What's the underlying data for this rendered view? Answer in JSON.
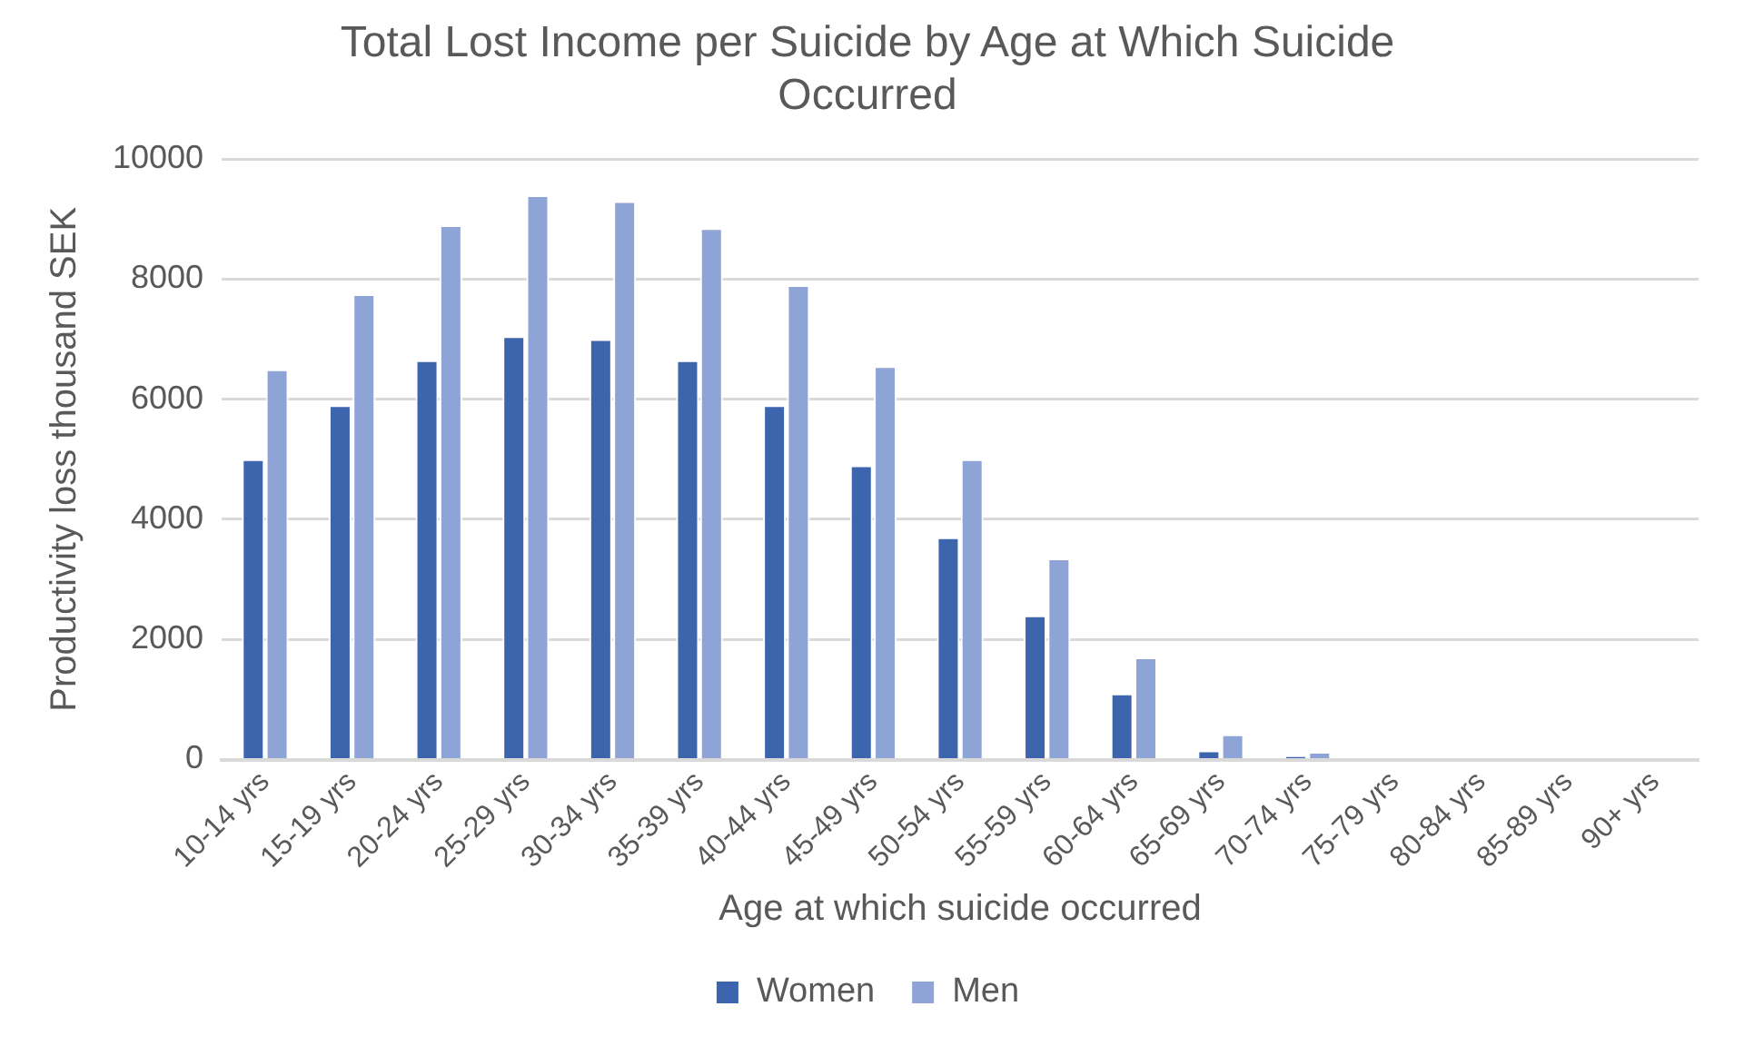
{
  "chart_data": {
    "type": "bar",
    "title": "Total Lost Income per Suicide by Age at Which Suicide Occurred",
    "xlabel": "Age at which suicide occurred",
    "ylabel": "Productivity loss thousand SEK",
    "categories": [
      "10-14 yrs",
      "15-19 yrs",
      "20-24 yrs",
      "25-29 yrs",
      "30-34 yrs",
      "35-39 yrs",
      "40-44 yrs",
      "45-49 yrs",
      "50-54 yrs",
      "55-59 yrs",
      "60-64 yrs",
      "65-69 yrs",
      "70-74 yrs",
      "75-79 yrs",
      "80-84 yrs",
      "85-89 yrs",
      "90+ yrs"
    ],
    "series": [
      {
        "name": "Women",
        "color": "#3c65ad",
        "values": [
          5000,
          5900,
          6650,
          7050,
          7000,
          6650,
          5900,
          4900,
          3700,
          2400,
          1100,
          150,
          60,
          0,
          0,
          0,
          0
        ]
      },
      {
        "name": "Men",
        "color": "#8fa4d6",
        "values": [
          6500,
          7750,
          8900,
          9400,
          9300,
          8850,
          7900,
          6550,
          5000,
          3350,
          1700,
          420,
          130,
          0,
          0,
          0,
          0
        ]
      }
    ],
    "ylim": [
      0,
      10000
    ],
    "yticks": [
      0,
      2000,
      4000,
      6000,
      8000,
      10000
    ],
    "grid": "y",
    "legend": "bottom"
  }
}
